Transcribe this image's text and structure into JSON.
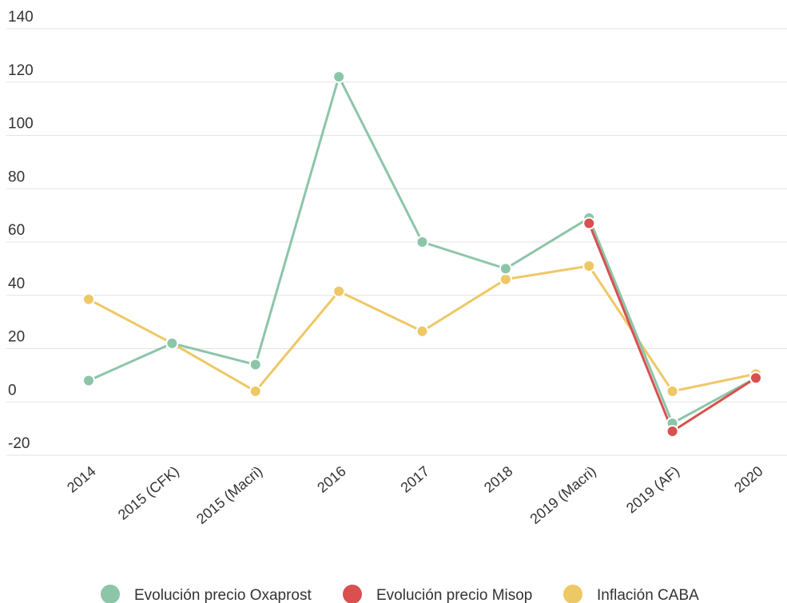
{
  "chart_data": {
    "type": "line",
    "categories": [
      "2014",
      "2015 (CFK)",
      "2015 (Macri)",
      "2016",
      "2017",
      "2018",
      "2019 (Macri)",
      "2019 (AF)",
      "2020"
    ],
    "ylim": [
      -20,
      140
    ],
    "yticks": [
      -20,
      0,
      20,
      40,
      60,
      80,
      100,
      120,
      140
    ],
    "grid": true,
    "legend_position": "bottom",
    "series": [
      {
        "name": "Evolución precio Oxaprost",
        "color": "#8cc5a8",
        "values": [
          8,
          22,
          14,
          122,
          60,
          50,
          69,
          -8,
          9
        ]
      },
      {
        "name": "Evolución precio Misop",
        "color": "#d9504f",
        "values": [
          null,
          null,
          null,
          null,
          null,
          null,
          67,
          -11,
          9
        ]
      },
      {
        "name": "Inflación CABA",
        "color": "#eec864",
        "values": [
          38.5,
          22,
          4,
          41.5,
          26.5,
          46,
          51,
          4,
          10.5
        ]
      }
    ]
  }
}
